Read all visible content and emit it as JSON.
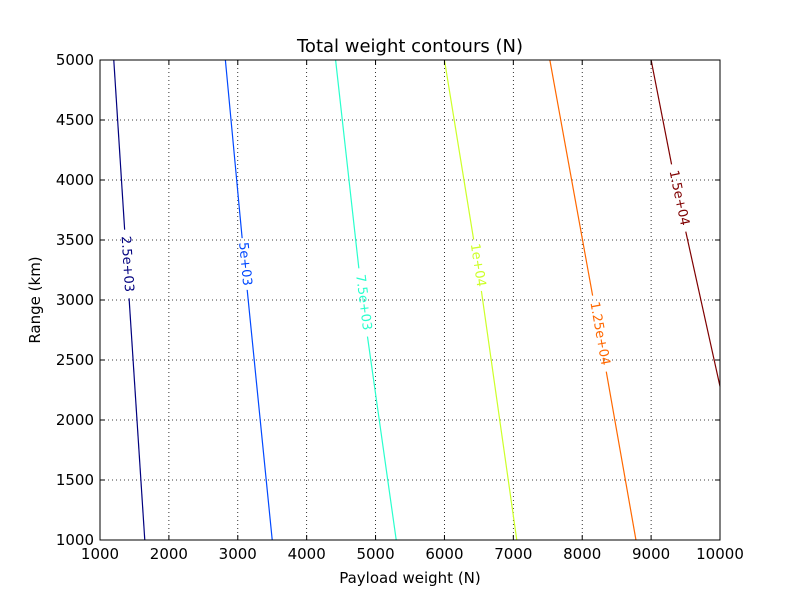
{
  "chart_data": {
    "type": "contour",
    "title": "Total weight contours (N)",
    "xlabel": "Payload weight (N)",
    "ylabel": "Range (km)",
    "xlim": [
      1000,
      10000
    ],
    "ylim": [
      1000,
      5000
    ],
    "grid": true,
    "x_ticks": [
      "1000",
      "2000",
      "3000",
      "4000",
      "5000",
      "6000",
      "7000",
      "8000",
      "9000",
      "10000"
    ],
    "y_ticks": [
      "1000",
      "1500",
      "2000",
      "2500",
      "3000",
      "3500",
      "4000",
      "4500",
      "5000"
    ],
    "contours": [
      {
        "level": "2.5e+03",
        "color": "#00007f",
        "start": [
          1650,
          1000
        ],
        "end": [
          1200,
          5000
        ],
        "label_at": [
          1390,
          3300
        ]
      },
      {
        "level": "5e+03",
        "color": "#0048ff",
        "start": [
          3500,
          1000
        ],
        "end": [
          2820,
          5000
        ],
        "label_at": [
          3100,
          3300
        ]
      },
      {
        "level": "7.5e+03",
        "color": "#29ffcd",
        "start": [
          5300,
          1000
        ],
        "end": [
          4420,
          5000
        ],
        "label_at": [
          4820,
          2980
        ]
      },
      {
        "level": "1e+04",
        "color": "#cdff29",
        "start": [
          7050,
          1000
        ],
        "end": [
          6000,
          5000
        ],
        "label_at": [
          6480,
          3290
        ]
      },
      {
        "level": "1.25e+04",
        "color": "#ff6800",
        "start": [
          8780,
          1000
        ],
        "end": [
          7530,
          5000
        ],
        "label_at": [
          8250,
          2720
        ]
      },
      {
        "level": "1.5e+04",
        "color": "#7f0000",
        "start": [
          10000,
          2280
        ],
        "end": [
          9000,
          5000
        ],
        "label_at": [
          9400,
          3850
        ]
      }
    ]
  }
}
